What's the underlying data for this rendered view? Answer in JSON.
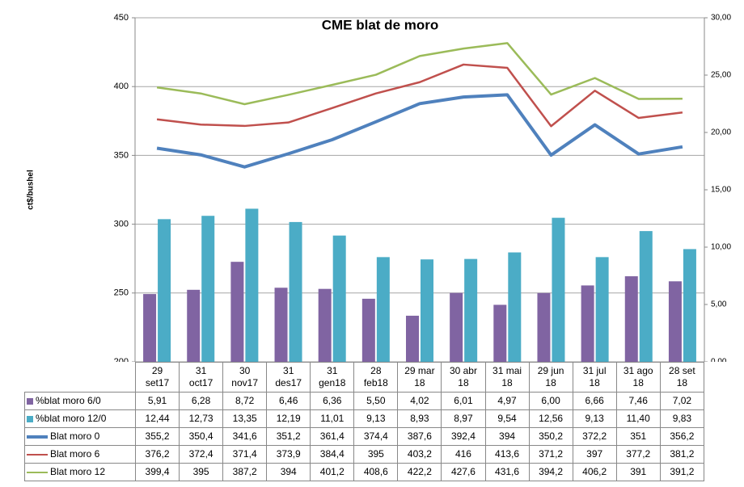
{
  "chart_data": {
    "type": "bar-line",
    "title": "CME blat de moro",
    "y_label": "ct$/bushel",
    "categories": [
      "29\nset17",
      "31\noct17",
      "30\nnov17",
      "31\ndes17",
      "31\ngen18",
      "28\nfeb18",
      "29 mar\n18",
      "30 abr\n18",
      "31 mai\n18",
      "29 jun\n18",
      "31 jul\n18",
      "31 ago\n18",
      "28 set\n18"
    ],
    "ylim": [
      200,
      450
    ],
    "yticks": [
      200,
      250,
      300,
      350,
      400,
      450
    ],
    "y2lim": [
      0,
      30
    ],
    "y2ticks": [
      {
        "value": 0,
        "label": "0,00"
      },
      {
        "value": 5,
        "label": "5,00"
      },
      {
        "value": 10,
        "label": "10,00"
      },
      {
        "value": 15,
        "label": "15,00"
      },
      {
        "value": 20,
        "label": "20,00"
      },
      {
        "value": 25,
        "label": "25,00"
      },
      {
        "value": 30,
        "label": "30,00"
      }
    ],
    "grid": true,
    "series": [
      {
        "name": "%blat moro 6/0",
        "type": "bar",
        "axis": "y2",
        "color": "#8064a2",
        "values": [
          5.91,
          6.28,
          8.72,
          6.46,
          6.36,
          5.5,
          4.02,
          6.01,
          4.97,
          6.0,
          6.66,
          7.46,
          7.02
        ],
        "value_labels": [
          "5,91",
          "6,28",
          "8,72",
          "6,46",
          "6,36",
          "5,50",
          "4,02",
          "6,01",
          "4,97",
          "6,00",
          "6,66",
          "7,46",
          "7,02"
        ]
      },
      {
        "name": "%blat moro 12/0",
        "type": "bar",
        "axis": "y2",
        "color": "#4bacc6",
        "values": [
          12.44,
          12.73,
          13.35,
          12.19,
          11.01,
          9.13,
          8.93,
          8.97,
          9.54,
          12.56,
          9.13,
          11.4,
          9.83
        ],
        "value_labels": [
          "12,44",
          "12,73",
          "13,35",
          "12,19",
          "11,01",
          "9,13",
          "8,93",
          "8,97",
          "9,54",
          "12,56",
          "9,13",
          "11,40",
          "9,83"
        ]
      },
      {
        "name": "Blat moro 0",
        "type": "line",
        "color": "#4f81bd",
        "width": 4,
        "values": [
          355.2,
          350.4,
          341.6,
          351.2,
          361.4,
          374.4,
          387.6,
          392.4,
          394,
          350.2,
          372.2,
          351,
          356.2
        ],
        "value_labels": [
          "355,2",
          "350,4",
          "341,6",
          "351,2",
          "361,4",
          "374,4",
          "387,6",
          "392,4",
          "394",
          "350,2",
          "372,2",
          "351",
          "356,2"
        ]
      },
      {
        "name": "Blat moro 6",
        "type": "line",
        "color": "#c0504d",
        "width": 2.5,
        "values": [
          376.2,
          372.4,
          371.4,
          373.9,
          384.4,
          395,
          403.2,
          416,
          413.6,
          371.2,
          397,
          377.2,
          381.2
        ],
        "value_labels": [
          "376,2",
          "372,4",
          "371,4",
          "373,9",
          "384,4",
          "395",
          "403,2",
          "416",
          "413,6",
          "371,2",
          "397",
          "377,2",
          "381,2"
        ]
      },
      {
        "name": "Blat moro 12",
        "type": "line",
        "color": "#9bbb59",
        "width": 2.5,
        "values": [
          399.4,
          395,
          387.2,
          394,
          401.2,
          408.6,
          422.2,
          427.6,
          431.6,
          394.2,
          406.2,
          391,
          391.2
        ],
        "value_labels": [
          "399,4",
          "395",
          "387,2",
          "394",
          "401,2",
          "408,6",
          "422,2",
          "427,6",
          "431,6",
          "394,2",
          "406,2",
          "391",
          "391,2"
        ]
      }
    ]
  }
}
